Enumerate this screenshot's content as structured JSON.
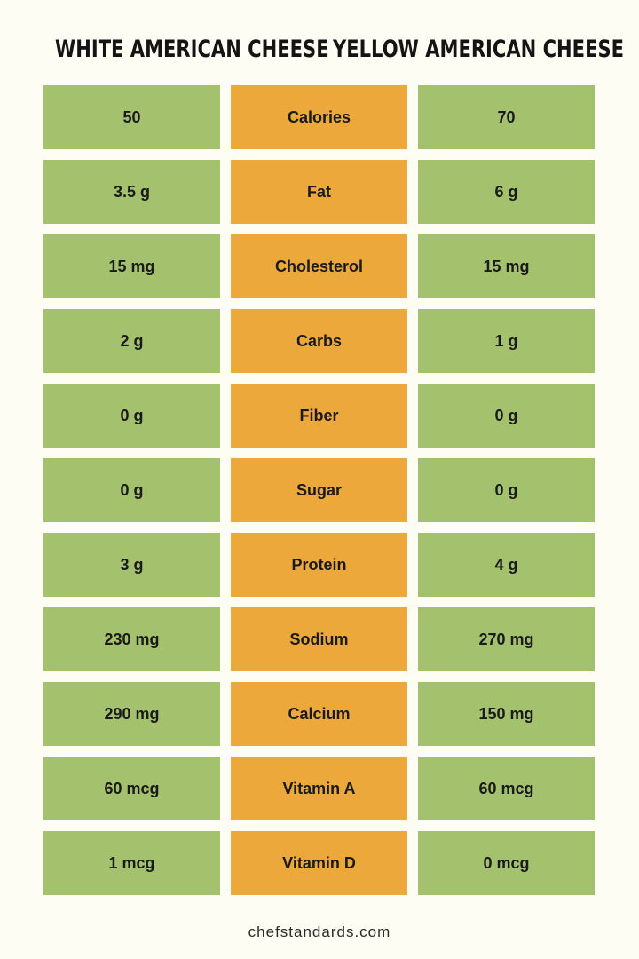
{
  "header": {
    "left_title": "WHITE AMERICAN CHEESE",
    "right_title": "YELLOW AMERICAN CHEESE"
  },
  "rows": [
    {
      "white": "50",
      "nutrient": "Calories",
      "yellow": "70"
    },
    {
      "white": "3.5 g",
      "nutrient": "Fat",
      "yellow": "6 g"
    },
    {
      "white": "15 mg",
      "nutrient": "Cholesterol",
      "yellow": "15 mg"
    },
    {
      "white": "2 g",
      "nutrient": "Carbs",
      "yellow": "1 g"
    },
    {
      "white": "0 g",
      "nutrient": "Fiber",
      "yellow": "0 g"
    },
    {
      "white": "0 g",
      "nutrient": "Sugar",
      "yellow": "0 g"
    },
    {
      "white": "3 g",
      "nutrient": "Protein",
      "yellow": "4 g"
    },
    {
      "white": "230 mg",
      "nutrient": "Sodium",
      "yellow": "270 mg"
    },
    {
      "white": "290 mg",
      "nutrient": "Calcium",
      "yellow": "150 mg"
    },
    {
      "white": "60 mcg",
      "nutrient": "Vitamin A",
      "yellow": "60 mcg"
    },
    {
      "white": "1 mcg",
      "nutrient": "Vitamin D",
      "yellow": "0 mcg"
    }
  ],
  "footer": {
    "site": "chefstandards.com"
  },
  "colors": {
    "background": "#fdfdf3",
    "value_cell": "#a4c16d",
    "nutrient_cell": "#eca83b",
    "text": "#1a1a1a"
  }
}
